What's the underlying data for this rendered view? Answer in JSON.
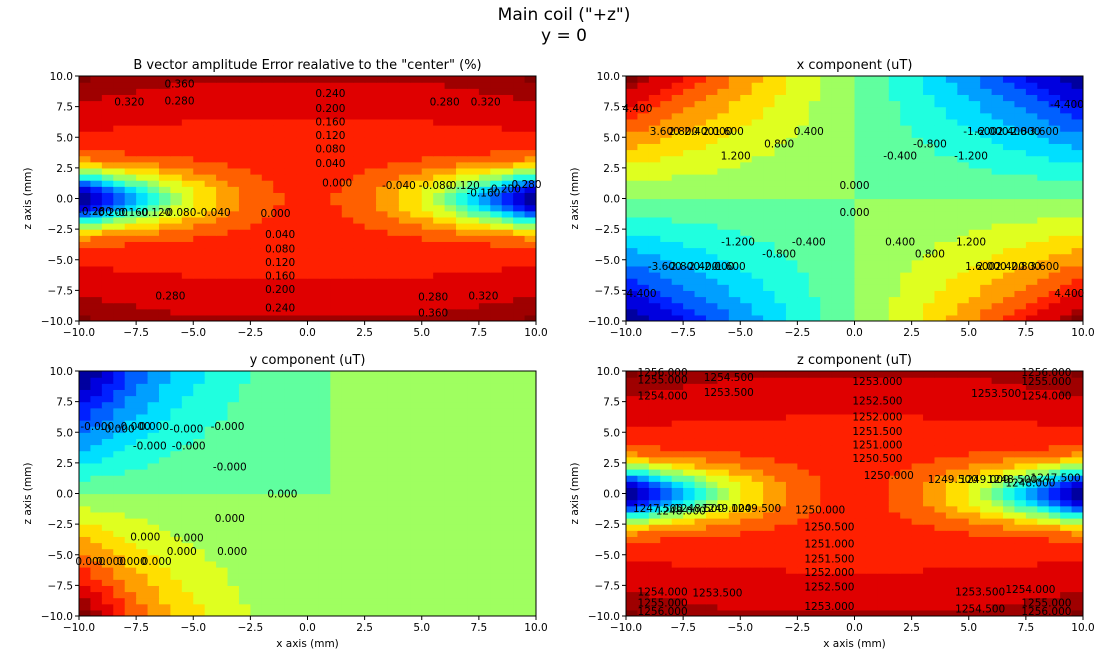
{
  "figure": {
    "title_line1": "Main coil (\"+z\")",
    "title_line2": "y = 0"
  },
  "chart_data": [
    {
      "type": "contour",
      "title": "B vector amplitude Error realative to the \"center\" (%)",
      "xlabel": "",
      "ylabel": "z axis (mm)",
      "xlim": [
        -10,
        10
      ],
      "ylim": [
        -10,
        10
      ],
      "xticks": [
        "−10.0",
        "−7.5",
        "−5.0",
        "−2.5",
        "0.0",
        "2.5",
        "5.0",
        "7.5",
        "10.0"
      ],
      "yticks": [
        "−10.0",
        "−7.5",
        "−5.0",
        "−2.5",
        "0.0",
        "2.5",
        "5.0",
        "7.5",
        "10.0"
      ],
      "contour_labels": [
        {
          "text": "0.240",
          "x": 1,
          "y": 8.6
        },
        {
          "text": "0.200",
          "x": 1,
          "y": 7.4
        },
        {
          "text": "0.160",
          "x": 1,
          "y": 6.3
        },
        {
          "text": "0.120",
          "x": 1,
          "y": 5.2
        },
        {
          "text": "0.080",
          "x": 1,
          "y": 4.1
        },
        {
          "text": "0.040",
          "x": 1,
          "y": 2.9
        },
        {
          "text": "0.280",
          "x": -5.6,
          "y": 8.0
        },
        {
          "text": "0.360",
          "x": -5.6,
          "y": 9.4
        },
        {
          "text": "0.320",
          "x": -7.8,
          "y": 7.9
        },
        {
          "text": "0.280",
          "x": 6.0,
          "y": 7.9
        },
        {
          "text": "0.320",
          "x": 7.8,
          "y": 7.9
        },
        {
          "text": "0.000",
          "x": 1.3,
          "y": 1.3
        },
        {
          "text": "-0.040",
          "x": 4.0,
          "y": 1.1
        },
        {
          "text": "-0.080",
          "x": 5.6,
          "y": 1.1
        },
        {
          "text": "-0.120",
          "x": 6.8,
          "y": 1.1
        },
        {
          "text": "-0.160",
          "x": 7.7,
          "y": 0.5
        },
        {
          "text": "-0.200",
          "x": 8.6,
          "y": 0.8
        },
        {
          "text": "-0.280",
          "x": 9.5,
          "y": 1.2
        },
        {
          "text": "-0.040",
          "x": -4.1,
          "y": -1.1
        },
        {
          "text": "-0.080",
          "x": -5.6,
          "y": -1.1
        },
        {
          "text": "-0.120",
          "x": -6.7,
          "y": -1.1
        },
        {
          "text": "-0.160",
          "x": -7.7,
          "y": -1.1
        },
        {
          "text": "-0.200",
          "x": -8.6,
          "y": -1.1
        },
        {
          "text": "-0.280",
          "x": -9.3,
          "y": -1.0
        },
        {
          "text": "0.000",
          "x": -1.4,
          "y": -1.2
        },
        {
          "text": "0.040",
          "x": -1.2,
          "y": -2.9
        },
        {
          "text": "0.080",
          "x": -1.2,
          "y": -4.1
        },
        {
          "text": "0.120",
          "x": -1.2,
          "y": -5.2
        },
        {
          "text": "0.160",
          "x": -1.2,
          "y": -6.3
        },
        {
          "text": "0.200",
          "x": -1.2,
          "y": -7.4
        },
        {
          "text": "0.240",
          "x": -1.2,
          "y": -8.9
        },
        {
          "text": "0.280",
          "x": -6.0,
          "y": -7.9
        },
        {
          "text": "0.280",
          "x": 5.5,
          "y": -8.0
        },
        {
          "text": "0.320",
          "x": 7.7,
          "y": -7.9
        },
        {
          "text": "0.360",
          "x": 5.5,
          "y": -9.3
        }
      ]
    },
    {
      "type": "contour",
      "title": "x component (uT)",
      "xlabel": "",
      "ylabel": "z axis (mm)",
      "xlim": [
        -10,
        10
      ],
      "ylim": [
        -10,
        10
      ],
      "xticks": [
        "−10.0",
        "−7.5",
        "−5.0",
        "−2.5",
        "0.0",
        "2.5",
        "5.0",
        "7.5",
        "10.0"
      ],
      "yticks": [
        "−10.0",
        "−7.5",
        "−5.0",
        "−2.5",
        "0.0",
        "2.5",
        "5.0",
        "7.5",
        "10.0"
      ],
      "contour_labels": [
        {
          "text": "0.000",
          "x": 0,
          "y": 1.1
        },
        {
          "text": "0.000",
          "x": 0,
          "y": -1.1
        },
        {
          "text": "0.400",
          "x": -2.0,
          "y": 5.5
        },
        {
          "text": "0.800",
          "x": -3.3,
          "y": 4.5
        },
        {
          "text": "1.200",
          "x": -5.2,
          "y": 3.5
        },
        {
          "text": "1.600",
          "x": -5.5,
          "y": 5.5
        },
        {
          "text": "2.000",
          "x": -6.0,
          "y": 5.5
        },
        {
          "text": "2.400",
          "x": -6.8,
          "y": 5.5
        },
        {
          "text": "2.800",
          "x": -7.5,
          "y": 5.5
        },
        {
          "text": "3.600",
          "x": -8.3,
          "y": 5.5
        },
        {
          "text": "4.400",
          "x": -9.5,
          "y": 7.4
        },
        {
          "text": "-0.400",
          "x": 2.0,
          "y": 3.5
        },
        {
          "text": "-0.800",
          "x": 3.3,
          "y": 4.5
        },
        {
          "text": "-1.200",
          "x": 5.1,
          "y": 3.5
        },
        {
          "text": "-1.600",
          "x": 5.5,
          "y": 5.5
        },
        {
          "text": "-2.000",
          "x": 6.0,
          "y": 5.5
        },
        {
          "text": "-2.400",
          "x": 6.8,
          "y": 5.5
        },
        {
          "text": "-2.800",
          "x": 7.4,
          "y": 5.5
        },
        {
          "text": "-3.600",
          "x": 8.2,
          "y": 5.5
        },
        {
          "text": "-4.400",
          "x": 9.3,
          "y": 7.7
        },
        {
          "text": "-1.200",
          "x": -5.1,
          "y": -3.5
        },
        {
          "text": "-0.800",
          "x": -3.3,
          "y": -4.5
        },
        {
          "text": "-0.400",
          "x": -2.0,
          "y": -3.5
        },
        {
          "text": "-1.600",
          "x": -5.5,
          "y": -5.5
        },
        {
          "text": "-2.000",
          "x": -6.0,
          "y": -5.5
        },
        {
          "text": "-2.400",
          "x": -6.7,
          "y": -5.5
        },
        {
          "text": "-2.800",
          "x": -7.5,
          "y": -5.5
        },
        {
          "text": "-3.600",
          "x": -8.3,
          "y": -5.5
        },
        {
          "text": "-4.400",
          "x": -9.4,
          "y": -7.7
        },
        {
          "text": "0.400",
          "x": 2.0,
          "y": -3.5
        },
        {
          "text": "0.800",
          "x": 3.3,
          "y": -4.5
        },
        {
          "text": "1.200",
          "x": 5.1,
          "y": -3.5
        },
        {
          "text": "1.600",
          "x": 5.5,
          "y": -5.5
        },
        {
          "text": "2.000",
          "x": 6.0,
          "y": -5.5
        },
        {
          "text": "2.400",
          "x": 6.8,
          "y": -5.5
        },
        {
          "text": "2.800",
          "x": 7.5,
          "y": -5.5
        },
        {
          "text": "3.600",
          "x": 8.3,
          "y": -5.5
        },
        {
          "text": "4.400",
          "x": 9.4,
          "y": -7.7
        }
      ]
    },
    {
      "type": "contour",
      "title": "y component (uT)",
      "xlabel": "x axis (mm)",
      "ylabel": "z axis (mm)",
      "xlim": [
        -10,
        10
      ],
      "ylim": [
        -10,
        10
      ],
      "xticks": [
        "−10.0",
        "−7.5",
        "−5.0",
        "−2.5",
        "0.0",
        "2.5",
        "5.0",
        "7.5",
        "10.0"
      ],
      "yticks": [
        "−10.0",
        "−7.5",
        "−5.0",
        "−2.5",
        "0.0",
        "2.5",
        "5.0",
        "7.5",
        "10.0"
      ],
      "contour_labels": [
        {
          "text": "0.000",
          "x": -1.1,
          "y": 0
        },
        {
          "text": "-0.000",
          "x": -3.5,
          "y": 5.5
        },
        {
          "text": "-0.000",
          "x": -5.3,
          "y": 5.3
        },
        {
          "text": "-0.000",
          "x": -6.8,
          "y": 5.5
        },
        {
          "text": "-0.000",
          "x": -7.6,
          "y": 5.5
        },
        {
          "text": "-0.000",
          "x": -8.3,
          "y": 5.3
        },
        {
          "text": "-0.000",
          "x": -9.2,
          "y": 5.5
        },
        {
          "text": "-0.000",
          "x": -5.2,
          "y": 3.9
        },
        {
          "text": "-0.000",
          "x": -6.9,
          "y": 3.9
        },
        {
          "text": "-0.000",
          "x": -3.4,
          "y": 2.2
        },
        {
          "text": "0.000",
          "x": -3.4,
          "y": -2.0
        },
        {
          "text": "0.000",
          "x": -5.2,
          "y": -3.6
        },
        {
          "text": "0.000",
          "x": -7.1,
          "y": -3.5
        },
        {
          "text": "0.000",
          "x": -3.3,
          "y": -4.7
        },
        {
          "text": "0.000",
          "x": -5.5,
          "y": -4.7
        },
        {
          "text": "0.000",
          "x": -6.6,
          "y": -5.5
        },
        {
          "text": "0.000",
          "x": -7.7,
          "y": -5.5
        },
        {
          "text": "0.000",
          "x": -8.6,
          "y": -5.5
        },
        {
          "text": "0.000",
          "x": -9.5,
          "y": -5.5
        }
      ]
    },
    {
      "type": "contour",
      "title": "z component (uT)",
      "xlabel": "x axis (mm)",
      "ylabel": "z axis (mm)",
      "xlim": [
        -10,
        10
      ],
      "ylim": [
        -10,
        10
      ],
      "xticks": [
        "−10.0",
        "−7.5",
        "−5.0",
        "−2.5",
        "0.0",
        "2.5",
        "5.0",
        "7.5",
        "10.0"
      ],
      "yticks": [
        "−10.0",
        "−7.5",
        "−5.0",
        "−2.5",
        "0.0",
        "2.5",
        "5.0",
        "7.5",
        "10.0"
      ],
      "contour_labels": [
        {
          "text": "1253.000",
          "x": 1,
          "y": 9.2
        },
        {
          "text": "1252.500",
          "x": 1,
          "y": 7.6
        },
        {
          "text": "1252.000",
          "x": 1,
          "y": 6.3
        },
        {
          "text": "1251.500",
          "x": 1,
          "y": 5.1
        },
        {
          "text": "1251.000",
          "x": 1,
          "y": 4.0
        },
        {
          "text": "1250.500",
          "x": 1,
          "y": 2.9
        },
        {
          "text": "1253.500",
          "x": -5.5,
          "y": 8.3
        },
        {
          "text": "1254.500",
          "x": -5.5,
          "y": 9.5
        },
        {
          "text": "1254.000",
          "x": -8.4,
          "y": 8.0
        },
        {
          "text": "1255.000",
          "x": -8.4,
          "y": 9.3
        },
        {
          "text": "1256.000",
          "x": -8.4,
          "y": 9.9
        },
        {
          "text": "1253.500",
          "x": 6.2,
          "y": 8.2
        },
        {
          "text": "1254.000",
          "x": 8.4,
          "y": 8.0
        },
        {
          "text": "1255.000",
          "x": 8.4,
          "y": 9.2
        },
        {
          "text": "1256.000",
          "x": 8.4,
          "y": 9.9
        },
        {
          "text": "1250.000",
          "x": 1.5,
          "y": 1.5
        },
        {
          "text": "1249.500",
          "x": 4.3,
          "y": 1.2
        },
        {
          "text": "1249.000",
          "x": 5.7,
          "y": 1.2
        },
        {
          "text": "1248.500",
          "x": 6.9,
          "y": 1.2
        },
        {
          "text": "1248.000",
          "x": 7.7,
          "y": 0.9
        },
        {
          "text": "1247.500",
          "x": 8.8,
          "y": 1.3
        },
        {
          "text": "1250.000",
          "x": -1.5,
          "y": -1.3
        },
        {
          "text": "1249.500",
          "x": -4.3,
          "y": -1.2
        },
        {
          "text": "1249.000",
          "x": -5.6,
          "y": -1.2
        },
        {
          "text": "1248.500",
          "x": -6.8,
          "y": -1.2
        },
        {
          "text": "1248.000",
          "x": -7.6,
          "y": -1.4
        },
        {
          "text": "1247.500",
          "x": -8.6,
          "y": -1.2
        },
        {
          "text": "1250.500",
          "x": -1.1,
          "y": -2.7
        },
        {
          "text": "1251.000",
          "x": -1.1,
          "y": -4.1
        },
        {
          "text": "1251.500",
          "x": -1.1,
          "y": -5.3
        },
        {
          "text": "1252.000",
          "x": -1.1,
          "y": -6.4
        },
        {
          "text": "1252.500",
          "x": -1.1,
          "y": -7.6
        },
        {
          "text": "1253.000",
          "x": -1.1,
          "y": -9.2
        },
        {
          "text": "1253.500",
          "x": -6.0,
          "y": -8.1
        },
        {
          "text": "1254.000",
          "x": -8.4,
          "y": -8.0
        },
        {
          "text": "1255.000",
          "x": -8.4,
          "y": -8.9
        },
        {
          "text": "1256.000",
          "x": -8.4,
          "y": -9.6
        },
        {
          "text": "1253.500",
          "x": 5.5,
          "y": -8.0
        },
        {
          "text": "1254.000",
          "x": 7.7,
          "y": -7.8
        },
        {
          "text": "1254.500",
          "x": 5.5,
          "y": -9.4
        },
        {
          "text": "1255.000",
          "x": 8.4,
          "y": -8.9
        },
        {
          "text": "1256.000",
          "x": 8.4,
          "y": -9.6
        }
      ]
    }
  ]
}
